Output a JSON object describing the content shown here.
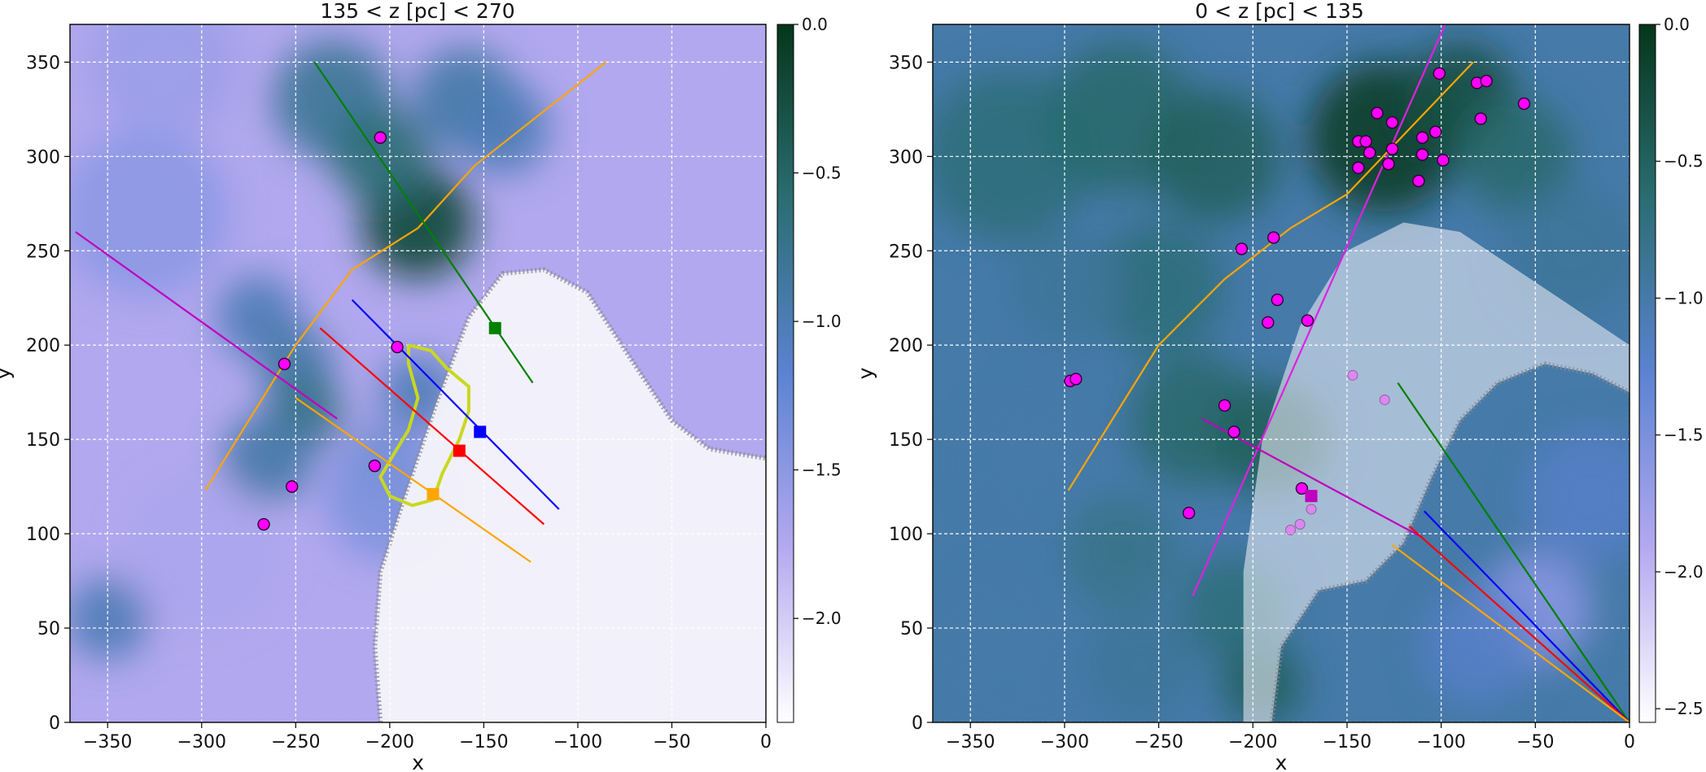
{
  "chart_data": [
    {
      "type": "heatmap",
      "title": "135 < z [pc] < 270",
      "xlabel": "x",
      "ylabel": "y",
      "xlim": [
        -370,
        0
      ],
      "ylim": [
        0,
        370
      ],
      "xticks": [
        -350,
        -300,
        -250,
        -200,
        -150,
        -100,
        -50,
        0
      ],
      "yticks": [
        0,
        50,
        100,
        150,
        200,
        250,
        300,
        350
      ],
      "grid": true,
      "colorbar": {
        "min": -2.35,
        "max": 0.0,
        "ticks": [
          0.0,
          -0.5,
          -1.0,
          -1.5,
          -2.0
        ],
        "colormap": "white-lavender-blue-teal-darkgreen"
      },
      "heat_blobs": [
        {
          "x": -230,
          "y": 330,
          "r": 32,
          "level": -0.8
        },
        {
          "x": -160,
          "y": 330,
          "r": 28,
          "level": -0.9
        },
        {
          "x": -185,
          "y": 265,
          "r": 30,
          "level": -0.2
        },
        {
          "x": -205,
          "y": 300,
          "r": 26,
          "level": -0.6
        },
        {
          "x": -140,
          "y": 315,
          "r": 25,
          "level": -1.0
        },
        {
          "x": -270,
          "y": 215,
          "r": 22,
          "level": -1.0
        },
        {
          "x": -250,
          "y": 190,
          "r": 20,
          "level": -0.9
        },
        {
          "x": -245,
          "y": 165,
          "r": 20,
          "level": -0.7
        },
        {
          "x": -265,
          "y": 140,
          "r": 24,
          "level": -0.9
        },
        {
          "x": -205,
          "y": 140,
          "r": 18,
          "level": -0.9
        },
        {
          "x": -185,
          "y": 175,
          "r": 20,
          "level": -1.0
        },
        {
          "x": -350,
          "y": 55,
          "r": 22,
          "level": -1.0
        },
        {
          "x": -330,
          "y": 270,
          "r": 45,
          "level": -1.5
        },
        {
          "x": -320,
          "y": 350,
          "r": 40,
          "level": -1.6
        },
        {
          "x": -300,
          "y": 90,
          "r": 40,
          "level": -1.7
        },
        {
          "x": -200,
          "y": 120,
          "r": 35,
          "level": -1.4
        }
      ],
      "lines": [
        {
          "color": "#ffa500",
          "points": [
            [
              -298,
              123
            ],
            [
              -275,
              160
            ],
            [
              -250,
              200
            ],
            [
              -220,
              240
            ],
            [
              -185,
              262
            ],
            [
              -155,
              295
            ],
            [
              -85,
              350
            ]
          ]
        },
        {
          "color": "#008000",
          "points": [
            [
              -240,
              350
            ],
            [
              -124,
              180
            ]
          ]
        },
        {
          "color": "#c000c0",
          "points": [
            [
              -367,
              260
            ],
            [
              -228,
              161
            ]
          ]
        },
        {
          "color": "#0000ff",
          "points": [
            [
              -220,
              224
            ],
            [
              -110,
              113
            ]
          ]
        },
        {
          "color": "#ff0000",
          "points": [
            [
              -237,
              209
            ],
            [
              -118,
              105
            ]
          ]
        },
        {
          "color": "#ffa500",
          "points": [
            [
              -250,
              172
            ],
            [
              -125,
              85
            ]
          ]
        }
      ],
      "markers_square": [
        {
          "x": -144,
          "y": 209,
          "color": "#008000"
        },
        {
          "x": -152,
          "y": 154,
          "color": "#0000ff"
        },
        {
          "x": -163,
          "y": 144,
          "color": "#ff0000"
        },
        {
          "x": -177,
          "y": 121,
          "color": "#ffa500"
        }
      ],
      "points": [
        {
          "x": -205,
          "y": 310
        },
        {
          "x": -196,
          "y": 199
        },
        {
          "x": -256,
          "y": 190
        },
        {
          "x": -208,
          "y": 136
        },
        {
          "x": -252,
          "y": 125
        },
        {
          "x": -267,
          "y": 105
        }
      ],
      "contour": {
        "color": "#c8d820",
        "points": [
          [
            -190,
            200
          ],
          [
            -178,
            197
          ],
          [
            -170,
            188
          ],
          [
            -158,
            178
          ],
          [
            -158,
            165
          ],
          [
            -163,
            150
          ],
          [
            -172,
            132
          ],
          [
            -177,
            118
          ],
          [
            -188,
            115
          ],
          [
            -200,
            120
          ],
          [
            -205,
            130
          ],
          [
            -198,
            142
          ],
          [
            -190,
            155
          ],
          [
            -185,
            172
          ],
          [
            -190,
            190
          ],
          [
            -190,
            200
          ]
        ]
      },
      "wave": {
        "edge": [
          [
            -205,
            0
          ],
          [
            -208,
            40
          ],
          [
            -205,
            80
          ],
          [
            -192,
            120
          ],
          [
            -175,
            170
          ],
          [
            -158,
            215
          ],
          [
            -140,
            238
          ],
          [
            -118,
            240
          ],
          [
            -95,
            228
          ],
          [
            -70,
            190
          ],
          [
            -50,
            160
          ],
          [
            -30,
            145
          ],
          [
            0,
            140
          ]
        ],
        "fill": [
          [
            -205,
            0
          ],
          [
            -208,
            40
          ],
          [
            -205,
            80
          ],
          [
            -192,
            120
          ],
          [
            -175,
            170
          ],
          [
            -158,
            215
          ],
          [
            -140,
            238
          ],
          [
            -118,
            240
          ],
          [
            -95,
            228
          ],
          [
            -70,
            190
          ],
          [
            -50,
            160
          ],
          [
            -30,
            145
          ],
          [
            0,
            140
          ],
          [
            0,
            0
          ]
        ]
      }
    },
    {
      "type": "heatmap",
      "title": "0 < z [pc] < 135",
      "xlabel": "x",
      "ylabel": "y",
      "xlim": [
        -370,
        0
      ],
      "ylim": [
        0,
        370
      ],
      "xticks": [
        -350,
        -300,
        -250,
        -200,
        -150,
        -100,
        -50,
        0
      ],
      "yticks": [
        0,
        50,
        100,
        150,
        200,
        250,
        300,
        350
      ],
      "grid": true,
      "colorbar": {
        "min": -2.55,
        "max": 0.0,
        "ticks": [
          0.0,
          -0.5,
          -1.0,
          -1.5,
          -2.0,
          -2.5
        ],
        "colormap": "white-lavender-blue-teal-darkgreen"
      },
      "heat_blobs": [
        {
          "x": -330,
          "y": 300,
          "r": 45,
          "level": -0.7
        },
        {
          "x": -270,
          "y": 320,
          "r": 40,
          "level": -0.6
        },
        {
          "x": -220,
          "y": 300,
          "r": 35,
          "level": -0.5
        },
        {
          "x": -130,
          "y": 310,
          "r": 40,
          "level": -0.1
        },
        {
          "x": -90,
          "y": 330,
          "r": 30,
          "level": -0.3
        },
        {
          "x": -60,
          "y": 300,
          "r": 30,
          "level": -0.6
        },
        {
          "x": -250,
          "y": 230,
          "r": 35,
          "level": -0.7
        },
        {
          "x": -300,
          "y": 230,
          "r": 30,
          "level": -0.9
        },
        {
          "x": -230,
          "y": 160,
          "r": 35,
          "level": -0.6
        },
        {
          "x": -190,
          "y": 150,
          "r": 30,
          "level": -0.5
        },
        {
          "x": -320,
          "y": 140,
          "r": 30,
          "level": -1.0
        },
        {
          "x": -270,
          "y": 90,
          "r": 30,
          "level": -0.8
        },
        {
          "x": -210,
          "y": 60,
          "r": 28,
          "level": -0.7
        },
        {
          "x": -330,
          "y": 40,
          "r": 35,
          "level": -1.0
        },
        {
          "x": -260,
          "y": 30,
          "r": 30,
          "level": -0.9
        },
        {
          "x": -195,
          "y": 20,
          "r": 22,
          "level": -0.5
        },
        {
          "x": -30,
          "y": 250,
          "r": 35,
          "level": -0.9
        },
        {
          "x": -50,
          "y": 60,
          "r": 30,
          "level": -1.6
        },
        {
          "x": -80,
          "y": 40,
          "r": 30,
          "level": -1.2
        },
        {
          "x": -20,
          "y": 120,
          "r": 35,
          "level": -1.2
        }
      ],
      "lines": [
        {
          "color": "#ffa500",
          "points": [
            [
              -298,
              123
            ],
            [
              -275,
              160
            ],
            [
              -250,
              200
            ],
            [
              -215,
              235
            ],
            [
              -180,
              262
            ],
            [
              -150,
              280
            ],
            [
              -83,
              350
            ]
          ]
        },
        {
          "color": "#e020e0",
          "points": [
            [
              -232,
              67
            ],
            [
              -97,
              372
            ]
          ]
        },
        {
          "color": "#c000c0",
          "points": [
            [
              -227,
              161
            ],
            [
              -110,
              98
            ]
          ]
        },
        {
          "color": "#008000",
          "points": [
            [
              -123,
              180
            ],
            [
              0,
              0
            ]
          ]
        },
        {
          "color": "#0000ff",
          "points": [
            [
              -109,
              112
            ],
            [
              0,
              0
            ]
          ]
        },
        {
          "color": "#ff0000",
          "points": [
            [
              -117,
              104
            ],
            [
              0,
              0
            ]
          ]
        },
        {
          "color": "#ffa500",
          "points": [
            [
              -126,
              94
            ],
            [
              0,
              0
            ]
          ]
        }
      ],
      "markers_square": [
        {
          "x": -169,
          "y": 120,
          "color": "#c000c0"
        }
      ],
      "points": [
        {
          "x": -134,
          "y": 323
        },
        {
          "x": -144,
          "y": 308
        },
        {
          "x": -140,
          "y": 308
        },
        {
          "x": -126,
          "y": 318
        },
        {
          "x": -138,
          "y": 302
        },
        {
          "x": -126,
          "y": 304
        },
        {
          "x": -144,
          "y": 294
        },
        {
          "x": -128,
          "y": 296
        },
        {
          "x": -110,
          "y": 310
        },
        {
          "x": -103,
          "y": 313
        },
        {
          "x": -110,
          "y": 301
        },
        {
          "x": -99,
          "y": 298
        },
        {
          "x": -112,
          "y": 287
        },
        {
          "x": -101,
          "y": 344
        },
        {
          "x": -81,
          "y": 339
        },
        {
          "x": -76,
          "y": 340
        },
        {
          "x": -79,
          "y": 320
        },
        {
          "x": -56,
          "y": 328
        },
        {
          "x": -189,
          "y": 257
        },
        {
          "x": -206,
          "y": 251
        },
        {
          "x": -187,
          "y": 224
        },
        {
          "x": -171,
          "y": 213
        },
        {
          "x": -192,
          "y": 212
        },
        {
          "x": -297,
          "y": 181
        },
        {
          "x": -294,
          "y": 182
        },
        {
          "x": -215,
          "y": 168
        },
        {
          "x": -210,
          "y": 154
        },
        {
          "x": -234,
          "y": 111
        },
        {
          "x": -174,
          "y": 124
        }
      ],
      "points_faded": [
        {
          "x": -147,
          "y": 184
        },
        {
          "x": -130,
          "y": 171
        },
        {
          "x": -169,
          "y": 113
        },
        {
          "x": -175,
          "y": 105
        },
        {
          "x": -180,
          "y": 102
        }
      ],
      "wave": {
        "edge": [
          [
            -190,
            0
          ],
          [
            -185,
            40
          ],
          [
            -165,
            70
          ],
          [
            -140,
            75
          ],
          [
            -120,
            95
          ],
          [
            -105,
            130
          ],
          [
            -90,
            160
          ],
          [
            -70,
            180
          ],
          [
            -45,
            190
          ],
          [
            -20,
            185
          ],
          [
            0,
            175
          ]
        ],
        "fill": [
          [
            -205,
            0
          ],
          [
            -205,
            80
          ],
          [
            -195,
            150
          ],
          [
            -175,
            210
          ],
          [
            -150,
            250
          ],
          [
            -120,
            265
          ],
          [
            -90,
            260
          ],
          [
            -60,
            240
          ],
          [
            -30,
            220
          ],
          [
            0,
            200
          ],
          [
            0,
            175
          ],
          [
            -20,
            185
          ],
          [
            -45,
            190
          ],
          [
            -70,
            180
          ],
          [
            -90,
            160
          ],
          [
            -105,
            130
          ],
          [
            -120,
            95
          ],
          [
            -140,
            75
          ],
          [
            -165,
            70
          ],
          [
            -185,
            40
          ],
          [
            -190,
            0
          ]
        ]
      }
    }
  ]
}
